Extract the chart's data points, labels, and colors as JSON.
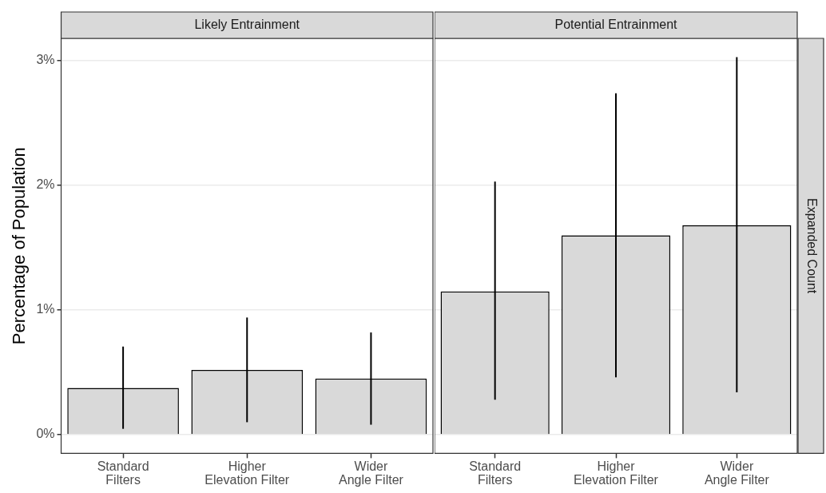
{
  "chart_data": [
    {
      "type": "bar",
      "title": "Likely Entrainment",
      "ylabel": "Percentage of Population",
      "categories": [
        "Standard\nFilters",
        "Higher\nElevation Filter",
        "Wider\nAngle Filter"
      ],
      "values": [
        0.375,
        0.52,
        0.45
      ],
      "color": "#d9d9d9",
      "errors": [
        [
          0.047,
          0.707
        ],
        [
          0.1,
          0.94
        ],
        [
          0.08,
          0.82
        ]
      ],
      "ylim": [
        -0.15,
        3.18
      ],
      "yticks": [
        {
          "value": 0,
          "label": "0%"
        },
        {
          "value": 1,
          "label": "1%"
        },
        {
          "value": 2,
          "label": "2%"
        },
        {
          "value": 3,
          "label": "3%"
        }
      ],
      "grid": "y"
    },
    {
      "type": "bar",
      "title": "Potential Entrainment",
      "categories": [
        "Standard\nFilters",
        "Higher\nElevation Filter",
        "Wider\nAngle Filter"
      ],
      "values": [
        1.15,
        1.6,
        1.68
      ],
      "color": "#d9d9d9",
      "errors": [
        [
          0.28,
          2.03
        ],
        [
          0.46,
          2.74
        ],
        [
          0.34,
          3.03
        ]
      ],
      "ylim": [
        -0.15,
        3.18
      ],
      "yticks": [
        0,
        1,
        2,
        3
      ],
      "grid": "y",
      "tick_labels": "x",
      "annotations": [
        "Expanded Count"
      ]
    }
  ]
}
